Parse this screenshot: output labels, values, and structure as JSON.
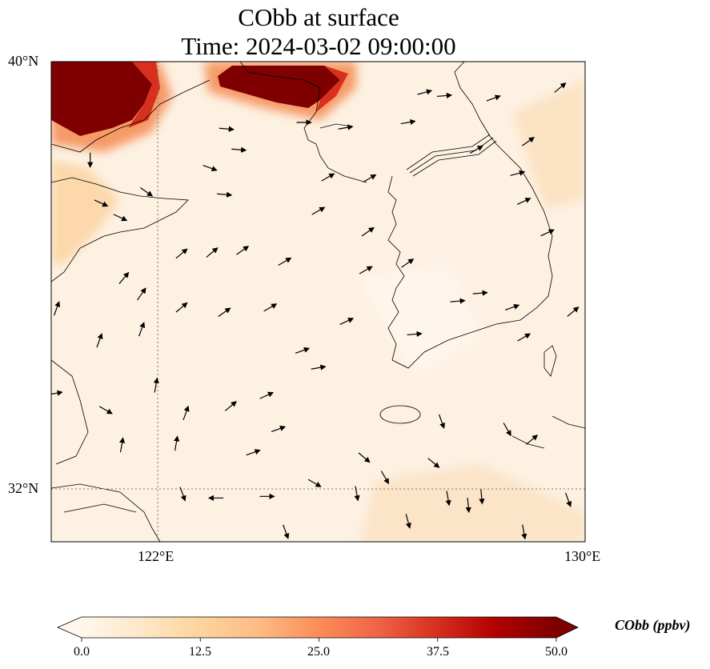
{
  "title": {
    "line1": "CObb at surface",
    "line2": "Time: 2024-03-02 09:00:00"
  },
  "map": {
    "extent": {
      "lon": [
        120.0,
        130.0
      ],
      "lat": [
        31.0,
        40.0
      ]
    },
    "lat_ticks": [
      {
        "value": 40,
        "label": "40°N"
      },
      {
        "value": 32,
        "label": "32°N"
      }
    ],
    "lon_ticks": [
      {
        "value": 122,
        "label": "122°E"
      },
      {
        "value": 130,
        "label": "130°E"
      }
    ],
    "gridlines": {
      "lon": [
        122
      ],
      "lat": [
        32
      ]
    },
    "background_color": "#fdf1e2",
    "wind_vectors_lon_lat_dir": [
      [
        123.28,
        38.74,
        -5
      ],
      [
        123.51,
        38.35,
        -5
      ],
      [
        122.97,
        38.01,
        -20
      ],
      [
        123.24,
        37.51,
        -5
      ],
      [
        121.78,
        37.56,
        -35
      ],
      [
        120.93,
        37.35,
        -25
      ],
      [
        121.29,
        37.08,
        -25
      ],
      [
        122.44,
        36.4,
        40
      ],
      [
        123.01,
        36.42,
        40
      ],
      [
        123.58,
        36.46,
        35
      ],
      [
        124.37,
        36.25,
        30
      ],
      [
        121.36,
        35.94,
        50
      ],
      [
        121.69,
        35.64,
        55
      ],
      [
        122.44,
        35.39,
        40
      ],
      [
        123.24,
        35.3,
        35
      ],
      [
        124.1,
        35.39,
        30
      ],
      [
        125.0,
        37.2,
        30
      ],
      [
        125.93,
        36.81,
        35
      ],
      [
        125.89,
        36.09,
        30
      ],
      [
        126.67,
        36.22,
        35
      ],
      [
        125.53,
        35.13,
        25
      ],
      [
        124.7,
        34.58,
        20
      ],
      [
        125.0,
        34.26,
        10
      ],
      [
        120.9,
        34.77,
        70
      ],
      [
        121.69,
        34.98,
        70
      ],
      [
        121.96,
        33.93,
        80
      ],
      [
        122.52,
        33.41,
        70
      ],
      [
        123.36,
        33.54,
        40
      ],
      [
        124.03,
        33.74,
        25
      ],
      [
        124.25,
        33.11,
        20
      ],
      [
        122.34,
        32.84,
        80
      ],
      [
        121.32,
        32.81,
        80
      ],
      [
        123.78,
        32.67,
        20
      ],
      [
        121.02,
        33.47,
        -30
      ],
      [
        120.07,
        33.78,
        10
      ],
      [
        122.46,
        31.9,
        -70
      ],
      [
        123.09,
        31.82,
        180
      ],
      [
        124.04,
        31.85,
        0
      ],
      [
        124.39,
        31.19,
        -70
      ],
      [
        124.93,
        32.1,
        -30
      ],
      [
        125.72,
        31.91,
        -80
      ],
      [
        125.86,
        32.58,
        -40
      ],
      [
        126.25,
        32.21,
        -60
      ],
      [
        126.68,
        31.39,
        -75
      ],
      [
        127.16,
        32.48,
        -40
      ],
      [
        127.31,
        33.26,
        -70
      ],
      [
        127.43,
        31.82,
        -80
      ],
      [
        127.81,
        31.69,
        -85
      ],
      [
        128.06,
        31.85,
        -85
      ],
      [
        128.85,
        31.19,
        -80
      ],
      [
        129.68,
        31.79,
        -70
      ],
      [
        128.54,
        33.11,
        -60
      ],
      [
        129.0,
        32.91,
        40
      ],
      [
        126.8,
        34.89,
        5
      ],
      [
        127.61,
        35.51,
        5
      ],
      [
        128.03,
        35.66,
        5
      ],
      [
        128.63,
        35.39,
        20
      ],
      [
        128.85,
        34.83,
        30
      ],
      [
        129.77,
        35.31,
        40
      ],
      [
        129.29,
        36.79,
        25
      ],
      [
        128.85,
        37.38,
        25
      ],
      [
        128.73,
        37.9,
        15
      ],
      [
        128.93,
        38.5,
        35
      ],
      [
        128.28,
        39.31,
        20
      ],
      [
        129.53,
        39.51,
        40
      ],
      [
        127.36,
        39.36,
        5
      ],
      [
        126.68,
        38.86,
        10
      ],
      [
        126.99,
        39.42,
        15
      ],
      [
        125.18,
        37.83,
        30
      ],
      [
        125.96,
        37.81,
        30
      ],
      [
        124.73,
        38.86,
        0
      ],
      [
        125.51,
        38.76,
        10
      ],
      [
        127.96,
        38.35,
        30
      ],
      [
        120.1,
        35.37,
        70
      ],
      [
        120.73,
        38.16,
        -90
      ]
    ]
  },
  "colorbar": {
    "label": "CObb (ppbv)",
    "ticks": [
      "0.0",
      "12.5",
      "25.0",
      "37.5",
      "50.0"
    ],
    "range": [
      0,
      50
    ],
    "colors": [
      "#fff7ec",
      "#fee8c8",
      "#fdd49e",
      "#fdbb84",
      "#fc8d59",
      "#ef6548",
      "#d7301f",
      "#b30000",
      "#7f0000"
    ]
  }
}
